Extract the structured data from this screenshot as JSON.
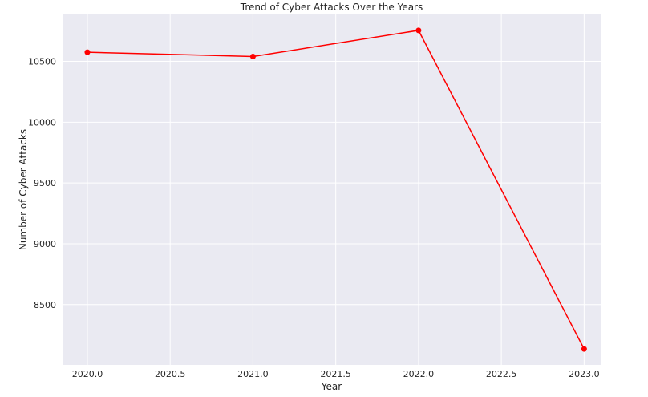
{
  "chart_data": {
    "type": "line",
    "title": "Trend of Cyber Attacks Over the Years",
    "xlabel": "Year",
    "ylabel": "Number of Cyber Attacks",
    "x": [
      2020,
      2021,
      2022,
      2023
    ],
    "series": [
      {
        "values": [
          10575,
          10540,
          10755,
          8135
        ],
        "color": "#ff0000",
        "marker": "circle"
      }
    ],
    "xlim": [
      2019.85,
      2023.1
    ],
    "ylim": [
      8004,
      10886
    ],
    "xticks": [
      2020.0,
      2020.5,
      2021.0,
      2021.5,
      2022.0,
      2022.5,
      2023.0
    ],
    "xtick_labels": [
      "2020.0",
      "2020.5",
      "2021.0",
      "2021.5",
      "2022.0",
      "2022.5",
      "2023.0"
    ],
    "yticks": [
      8500,
      9000,
      9500,
      10000,
      10500
    ],
    "ytick_labels": [
      "8500",
      "9000",
      "9500",
      "10000",
      "10500"
    ],
    "grid": true,
    "legend": "none",
    "background_color": "#eaeaf2",
    "grid_color": "#ffffff"
  }
}
